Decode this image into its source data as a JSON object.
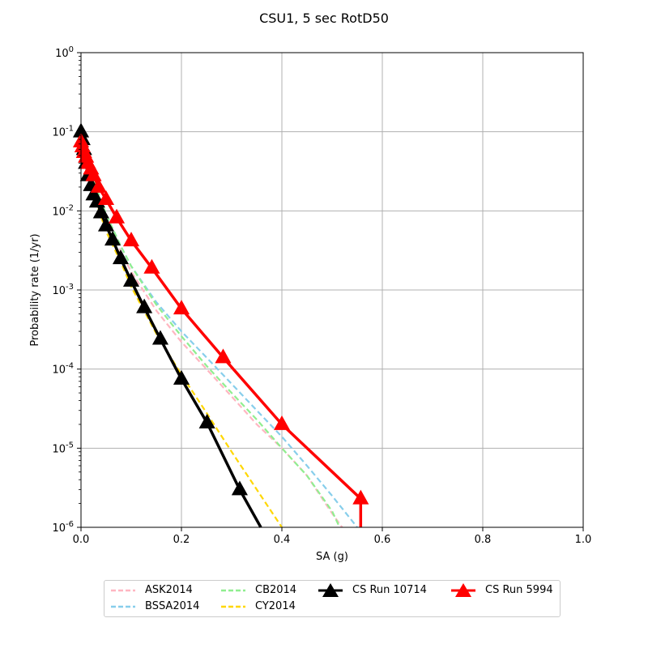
{
  "chart_data": {
    "type": "line",
    "title": "CSU1, 5 sec RotD50",
    "xlabel": "SA (g)",
    "ylabel": "Probability rate (1/yr)",
    "xlim": [
      0,
      1.0
    ],
    "ylim": [
      1e-06,
      1
    ],
    "yscale": "log",
    "grid": true,
    "legend_position": "below",
    "x_ticks": [
      "0.0",
      "0.2",
      "0.4",
      "0.6",
      "0.8",
      "1.0"
    ],
    "y_ticks": [
      "10^-6",
      "10^-5",
      "10^-4",
      "10^-3",
      "10^-2",
      "10^-1",
      "10^0"
    ],
    "series": [
      {
        "name": "ASK2014",
        "color": "#ffb6c1",
        "style": "dashed",
        "marker": "none",
        "x": [
          0.0,
          0.01,
          0.02,
          0.03,
          0.05,
          0.08,
          0.1,
          0.15,
          0.2,
          0.25,
          0.3,
          0.35,
          0.4,
          0.45,
          0.5,
          0.52
        ],
        "y": [
          0.08,
          0.045,
          0.028,
          0.018,
          0.008,
          0.003,
          0.0017,
          0.00055,
          0.00022,
          0.0001,
          4.5e-05,
          2e-05,
          1e-05,
          4.5e-06,
          1.5e-06,
          1e-06
        ]
      },
      {
        "name": "BSSA2014",
        "color": "#87ceeb",
        "style": "dashed",
        "marker": "none",
        "x": [
          0.0,
          0.01,
          0.02,
          0.03,
          0.05,
          0.08,
          0.1,
          0.15,
          0.2,
          0.25,
          0.3,
          0.35,
          0.4,
          0.45,
          0.5,
          0.55
        ],
        "y": [
          0.08,
          0.048,
          0.03,
          0.02,
          0.009,
          0.0035,
          0.002,
          0.0007,
          0.0003,
          0.00014,
          6.5e-05,
          3e-05,
          1.4e-05,
          6e-06,
          2.5e-06,
          1e-06
        ]
      },
      {
        "name": "CB2014",
        "color": "#90ee90",
        "style": "dashed",
        "marker": "none",
        "x": [
          0.0,
          0.01,
          0.02,
          0.03,
          0.05,
          0.08,
          0.1,
          0.15,
          0.2,
          0.25,
          0.3,
          0.35,
          0.4,
          0.45,
          0.5,
          0.515
        ],
        "y": [
          0.08,
          0.048,
          0.03,
          0.02,
          0.009,
          0.0035,
          0.002,
          0.00065,
          0.00026,
          0.00011,
          5e-05,
          2.3e-05,
          1e-05,
          4.5e-06,
          1.6e-06,
          1e-06
        ]
      },
      {
        "name": "CY2014",
        "color": "#ffd700",
        "style": "dashed",
        "marker": "none",
        "x": [
          0.0,
          0.01,
          0.02,
          0.03,
          0.05,
          0.08,
          0.1,
          0.15,
          0.2,
          0.25,
          0.3,
          0.35,
          0.4
        ],
        "y": [
          0.08,
          0.04,
          0.022,
          0.013,
          0.0055,
          0.0022,
          0.0011,
          0.00028,
          8.5e-05,
          2.8e-05,
          9e-06,
          3e-06,
          1e-06
        ]
      },
      {
        "name": "CS Run 10714",
        "color": "#000000",
        "style": "solid",
        "marker": "triangle",
        "x": [
          0.0,
          0.003,
          0.006,
          0.01,
          0.014,
          0.02,
          0.025,
          0.032,
          0.04,
          0.05,
          0.063,
          0.079,
          0.1,
          0.126,
          0.158,
          0.2,
          0.251,
          0.316,
          0.358
        ],
        "y": [
          0.1,
          0.08,
          0.06,
          0.04,
          0.028,
          0.021,
          0.016,
          0.013,
          0.0095,
          0.0065,
          0.0043,
          0.0025,
          0.0013,
          0.0006,
          0.00024,
          7.5e-05,
          2.1e-05,
          3e-06,
          1e-06
        ],
        "marker_count": 18
      },
      {
        "name": "CS Run 5994",
        "color": "#ff0000",
        "style": "solid",
        "marker": "triangle",
        "x": [
          0.0,
          0.003,
          0.006,
          0.01,
          0.014,
          0.02,
          0.025,
          0.035,
          0.05,
          0.071,
          0.1,
          0.141,
          0.2,
          0.283,
          0.4,
          0.557,
          0.557
        ],
        "y": [
          0.075,
          0.065,
          0.055,
          0.048,
          0.04,
          0.034,
          0.028,
          0.02,
          0.014,
          0.0082,
          0.0042,
          0.0019,
          0.00058,
          0.00014,
          2e-05,
          2.3e-06,
          1e-06
        ],
        "marker_count": 16
      }
    ]
  }
}
